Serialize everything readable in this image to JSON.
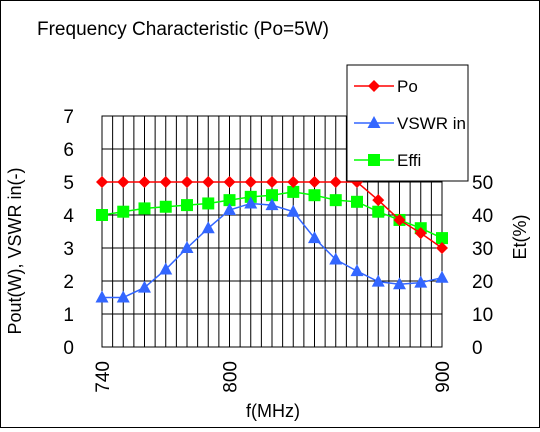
{
  "chart_data": {
    "type": "line",
    "title": "Frequency Characteristic (Po=5W)",
    "xlabel": "f(MHz)",
    "ylabel_left": "Pout(W), VSWR in(-)",
    "ylabel_right": "Et(%)",
    "x": [
      740,
      745,
      750,
      755,
      760,
      765,
      770,
      775,
      780,
      785,
      790,
      795,
      800,
      805,
      810,
      815,
      820,
      825,
      830,
      835,
      840,
      845,
      850,
      855,
      860,
      865,
      870,
      875,
      880,
      885,
      890,
      895,
      900
    ],
    "x_ticks": [
      "740",
      "800",
      "900"
    ],
    "xlim": [
      740,
      900
    ],
    "ylim_left": [
      0,
      7
    ],
    "yticks_left": [
      "0",
      "1",
      "2",
      "3",
      "4",
      "5",
      "6",
      "7"
    ],
    "ylim_right": [
      0,
      70
    ],
    "yticks_right": [
      "0",
      "10",
      "20",
      "30",
      "40",
      "50"
    ],
    "grid": true,
    "legend_position": "top-right",
    "series": [
      {
        "name": "Po",
        "color": "#ff0000",
        "marker": "diamond",
        "axis": "left",
        "x": [
          740,
          750,
          760,
          770,
          780,
          790,
          800,
          810,
          820,
          830,
          840,
          850,
          860,
          870,
          880,
          890,
          900
        ],
        "values": [
          5.0,
          5.0,
          5.0,
          5.0,
          5.0,
          5.0,
          5.0,
          5.0,
          5.0,
          5.0,
          5.0,
          5.0,
          5.0,
          4.45,
          3.85,
          3.45,
          3.0
        ]
      },
      {
        "name": "VSWR in",
        "color": "#3366ff",
        "marker": "triangle",
        "axis": "left",
        "x": [
          740,
          750,
          760,
          770,
          780,
          790,
          800,
          810,
          820,
          830,
          840,
          850,
          860,
          870,
          880,
          890,
          900
        ],
        "values": [
          1.5,
          1.5,
          1.8,
          2.35,
          3.0,
          3.6,
          4.15,
          4.35,
          4.3,
          4.1,
          3.3,
          2.65,
          2.3,
          1.98,
          1.9,
          1.95,
          2.1
        ]
      },
      {
        "name": "Effi",
        "color": "#00ff00",
        "marker": "square",
        "axis": "right",
        "x": [
          740,
          750,
          760,
          770,
          780,
          790,
          800,
          810,
          820,
          830,
          840,
          850,
          860,
          870,
          880,
          890,
          900
        ],
        "values": [
          40,
          41,
          42,
          42.5,
          43,
          43.5,
          44.5,
          45.5,
          46,
          47,
          46,
          44.5,
          44,
          41,
          38.5,
          36,
          33
        ]
      }
    ]
  }
}
